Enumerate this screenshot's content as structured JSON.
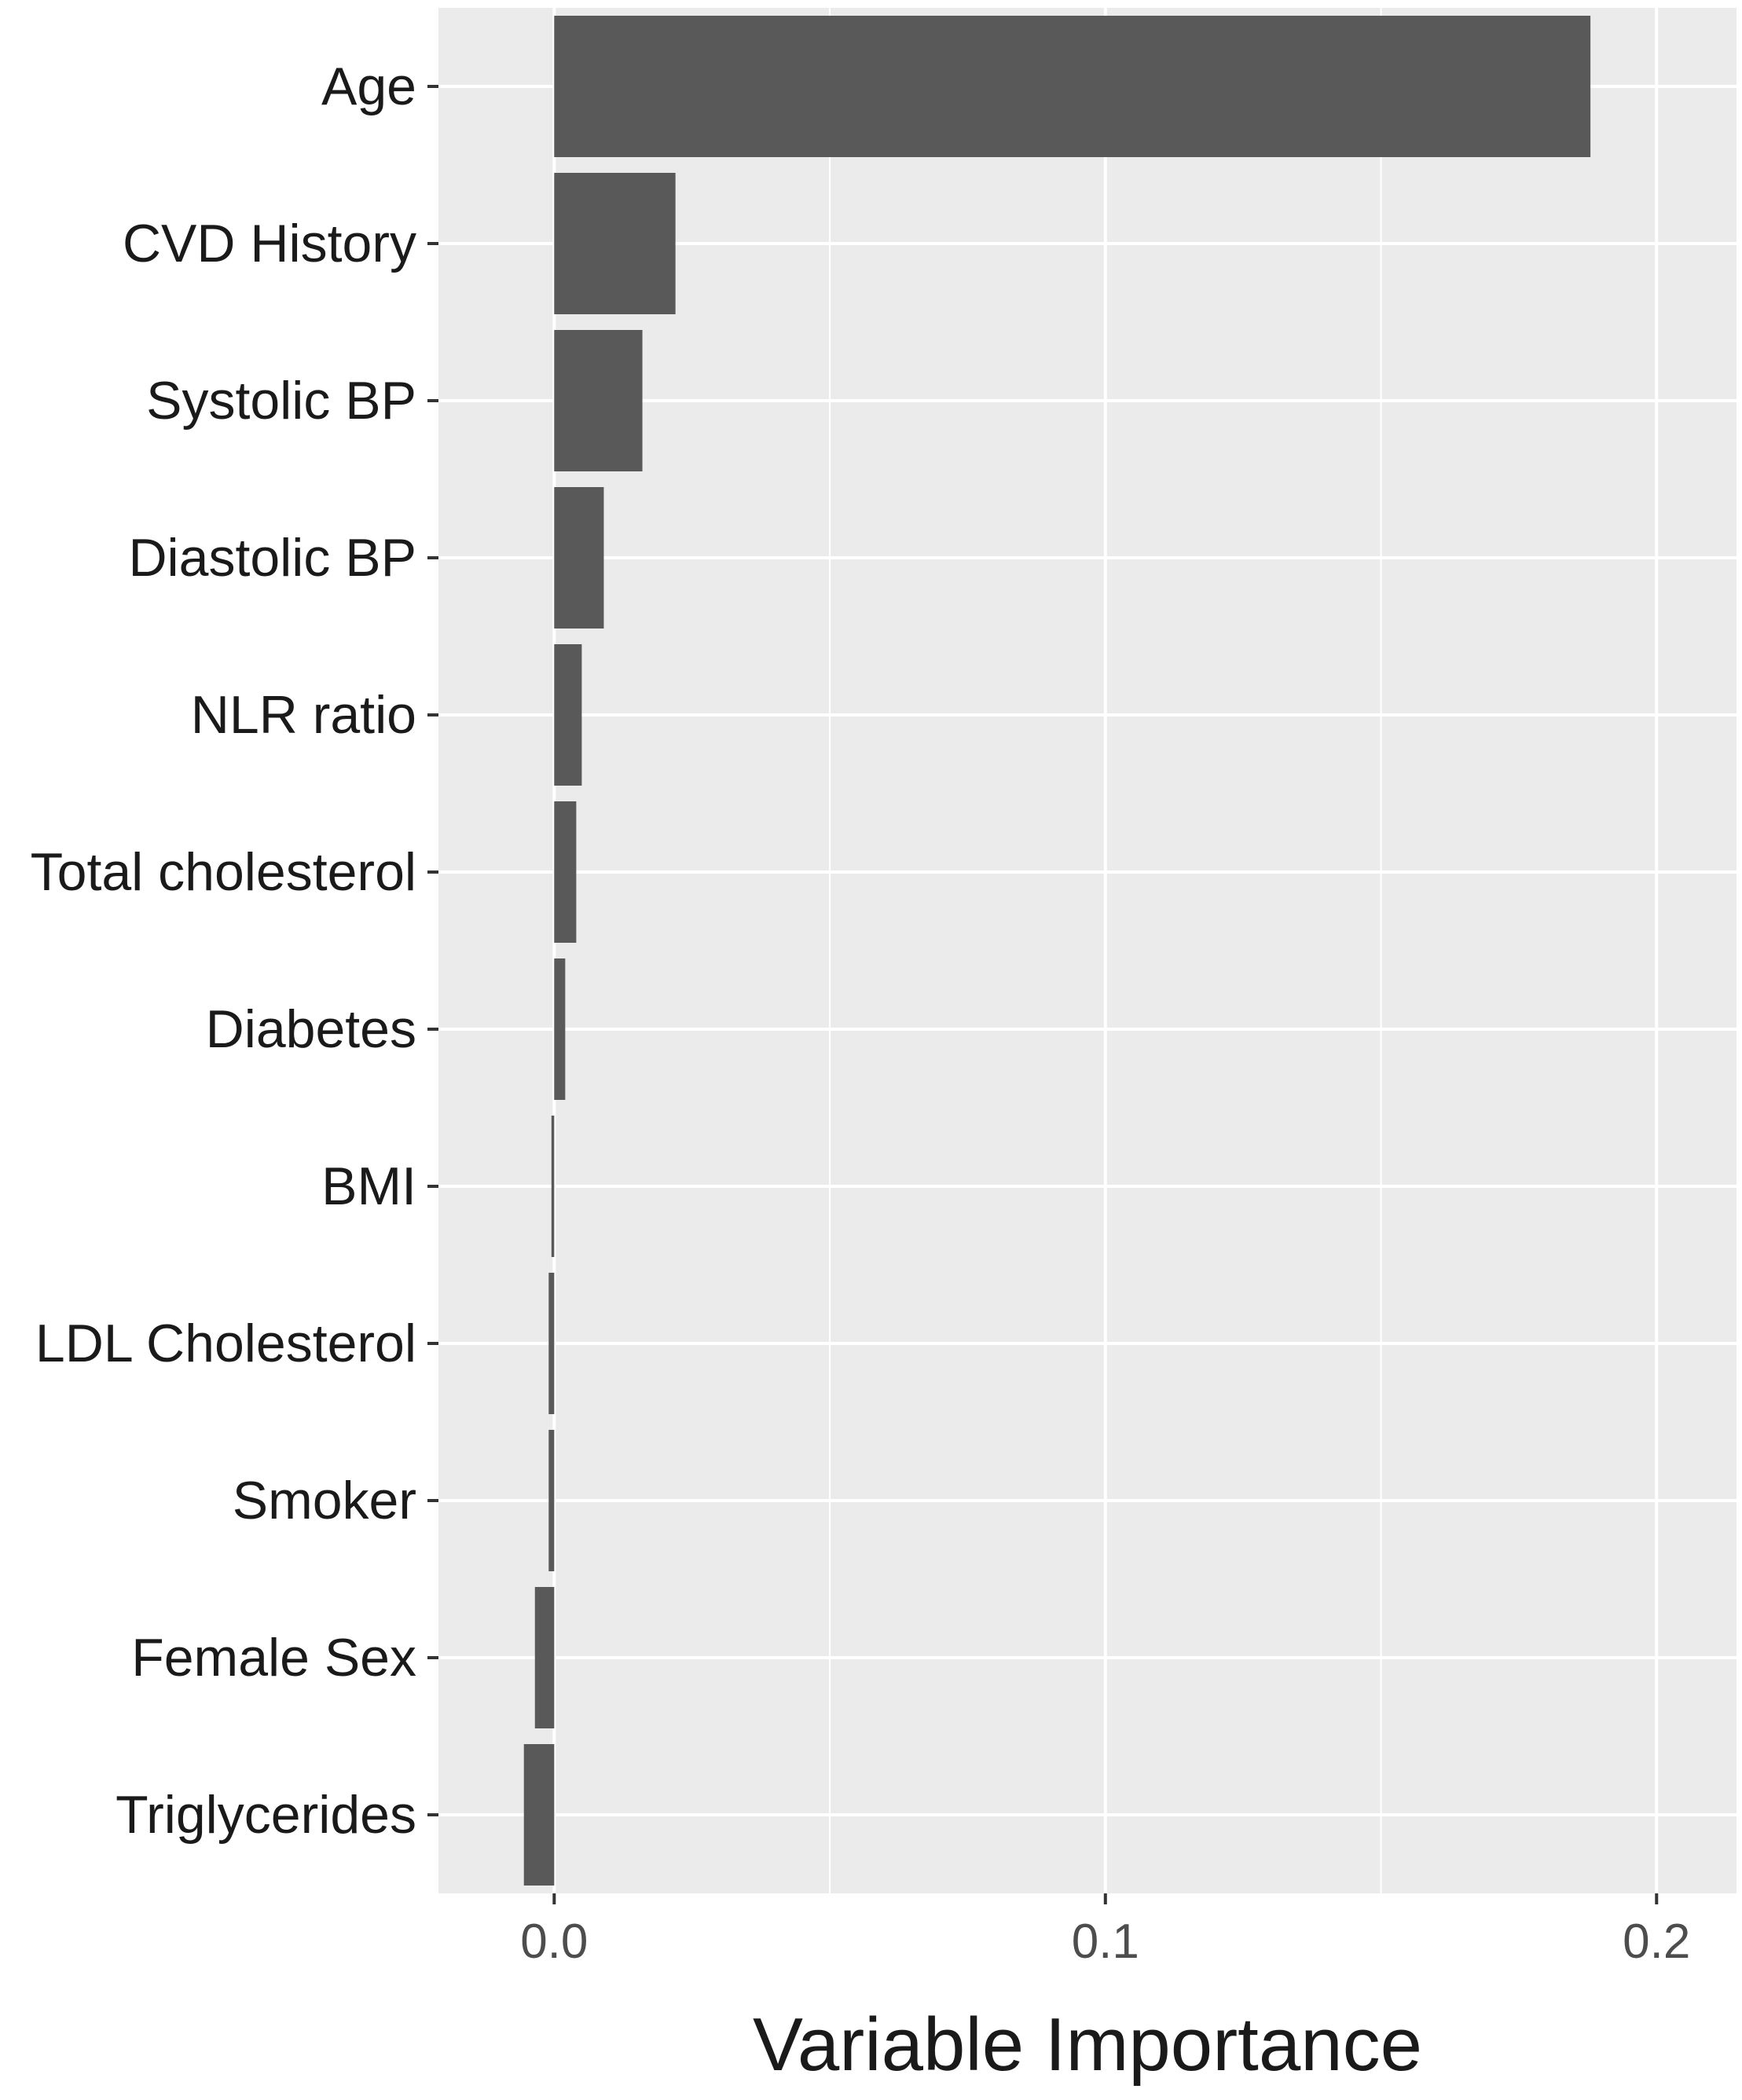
{
  "chart_data": {
    "type": "bar",
    "orientation": "horizontal",
    "categories": [
      "Age",
      "CVD History",
      "Systolic BP",
      "Diastolic BP",
      "NLR ratio",
      "Total cholesterol",
      "Diabetes",
      "BMI",
      "LDL Cholesterol",
      "Smoker",
      "Female Sex",
      "Triglycerides"
    ],
    "values": [
      0.188,
      0.022,
      0.016,
      0.009,
      0.005,
      0.004,
      0.002,
      -0.0005,
      -0.001,
      -0.001,
      -0.0035,
      -0.0055
    ],
    "xlabel": "Variable Importance",
    "ylabel": "",
    "xlim": [
      -0.021,
      0.2145
    ],
    "xticks": [
      0.0,
      0.1,
      0.2
    ],
    "xtick_labels": [
      "0.0",
      "0.1",
      "0.2"
    ],
    "grid": true,
    "colors": {
      "bar": "#595959",
      "panel": "#ebebeb",
      "grid": "#ffffff"
    }
  }
}
